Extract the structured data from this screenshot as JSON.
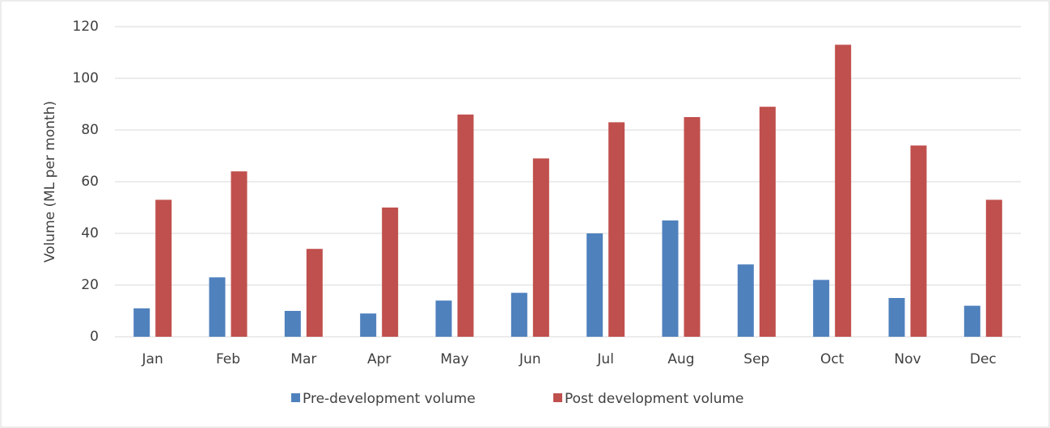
{
  "chart_data": {
    "type": "bar",
    "y_label": "Volume (ML per month)",
    "categories": [
      "Jan",
      "Feb",
      "Mar",
      "Apr",
      "May",
      "Jun",
      "Jul",
      "Aug",
      "Sep",
      "Oct",
      "Nov",
      "Dec"
    ],
    "series": [
      {
        "name": "Pre-development volume",
        "color": "#4f81bd",
        "values": [
          11,
          23,
          10,
          9,
          14,
          17,
          40,
          45,
          28,
          22,
          15,
          12
        ]
      },
      {
        "name": "Post development volume",
        "color": "#c0504d",
        "values": [
          53,
          64,
          34,
          50,
          86,
          69,
          83,
          85,
          89,
          113,
          74,
          53
        ]
      }
    ],
    "ylim": [
      0,
      120
    ],
    "yticks": [
      0,
      20,
      40,
      60,
      80,
      100,
      120
    ],
    "grid": true,
    "legend": "bottom"
  }
}
